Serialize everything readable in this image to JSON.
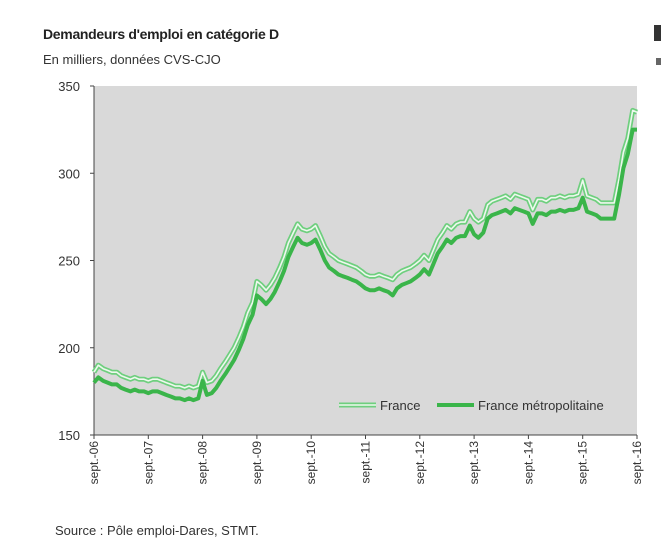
{
  "header": {
    "title": "Demandeurs d'emploi en catégorie D",
    "subtitle": "En milliers, données CVS-CJO"
  },
  "footer": {
    "source": "Source : Pôle emploi-Dares, STMT."
  },
  "colors": {
    "plot_bg": "#d9d9d9",
    "france": "#6ecf7e",
    "metro": "#3ab54a"
  },
  "chart_data": {
    "type": "line",
    "title": "Demandeurs d'emploi en catégorie D",
    "subtitle": "En milliers, données CVS-CJO",
    "xlabel": "",
    "ylabel": "",
    "ylim": [
      150,
      350
    ],
    "yticks": [
      150,
      200,
      250,
      300,
      350
    ],
    "x_tick_labels": [
      "sept.-06",
      "sept.-07",
      "sept.-08",
      "sept.-09",
      "sept.-10",
      "sept.-11",
      "sept.-12",
      "sept.-13",
      "sept.-14",
      "sept.-15",
      "sept.-16"
    ],
    "x_range_years": [
      0,
      10
    ],
    "legend_position": "bottom-right",
    "series": [
      {
        "name": "France",
        "style": "double-line",
        "points": [
          [
            0.0,
            186
          ],
          [
            0.08,
            190
          ],
          [
            0.17,
            188
          ],
          [
            0.25,
            187
          ],
          [
            0.33,
            186
          ],
          [
            0.42,
            186
          ],
          [
            0.5,
            184
          ],
          [
            0.58,
            183
          ],
          [
            0.67,
            182
          ],
          [
            0.75,
            183
          ],
          [
            0.83,
            182
          ],
          [
            0.92,
            182
          ],
          [
            1.0,
            181
          ],
          [
            1.08,
            182
          ],
          [
            1.17,
            182
          ],
          [
            1.25,
            181
          ],
          [
            1.33,
            180
          ],
          [
            1.42,
            179
          ],
          [
            1.5,
            178
          ],
          [
            1.58,
            178
          ],
          [
            1.67,
            177
          ],
          [
            1.75,
            178
          ],
          [
            1.83,
            177
          ],
          [
            1.92,
            178
          ],
          [
            2.0,
            186
          ],
          [
            2.08,
            180
          ],
          [
            2.17,
            181
          ],
          [
            2.25,
            184
          ],
          [
            2.33,
            188
          ],
          [
            2.42,
            192
          ],
          [
            2.5,
            196
          ],
          [
            2.58,
            200
          ],
          [
            2.67,
            206
          ],
          [
            2.75,
            212
          ],
          [
            2.83,
            220
          ],
          [
            2.92,
            226
          ],
          [
            3.0,
            238
          ],
          [
            3.08,
            236
          ],
          [
            3.17,
            233
          ],
          [
            3.25,
            236
          ],
          [
            3.33,
            240
          ],
          [
            3.42,
            246
          ],
          [
            3.5,
            252
          ],
          [
            3.58,
            260
          ],
          [
            3.67,
            266
          ],
          [
            3.75,
            271
          ],
          [
            3.83,
            268
          ],
          [
            3.92,
            267
          ],
          [
            4.0,
            268
          ],
          [
            4.08,
            270
          ],
          [
            4.17,
            264
          ],
          [
            4.25,
            258
          ],
          [
            4.33,
            254
          ],
          [
            4.42,
            252
          ],
          [
            4.5,
            250
          ],
          [
            4.58,
            249
          ],
          [
            4.67,
            248
          ],
          [
            4.75,
            247
          ],
          [
            4.83,
            246
          ],
          [
            4.92,
            244
          ],
          [
            5.0,
            242
          ],
          [
            5.08,
            241
          ],
          [
            5.17,
            241
          ],
          [
            5.25,
            242
          ],
          [
            5.33,
            241
          ],
          [
            5.42,
            240
          ],
          [
            5.5,
            239
          ],
          [
            5.58,
            242
          ],
          [
            5.67,
            244
          ],
          [
            5.75,
            245
          ],
          [
            5.83,
            246
          ],
          [
            5.92,
            248
          ],
          [
            6.0,
            250
          ],
          [
            6.08,
            253
          ],
          [
            6.17,
            250
          ],
          [
            6.25,
            256
          ],
          [
            6.33,
            262
          ],
          [
            6.42,
            266
          ],
          [
            6.5,
            270
          ],
          [
            6.58,
            268
          ],
          [
            6.67,
            271
          ],
          [
            6.75,
            272
          ],
          [
            6.83,
            272
          ],
          [
            6.92,
            278
          ],
          [
            7.0,
            274
          ],
          [
            7.08,
            272
          ],
          [
            7.17,
            274
          ],
          [
            7.25,
            282
          ],
          [
            7.33,
            284
          ],
          [
            7.42,
            285
          ],
          [
            7.5,
            286
          ],
          [
            7.58,
            287
          ],
          [
            7.67,
            285
          ],
          [
            7.75,
            288
          ],
          [
            7.83,
            287
          ],
          [
            7.92,
            286
          ],
          [
            8.0,
            285
          ],
          [
            8.08,
            279
          ],
          [
            8.17,
            285
          ],
          [
            8.25,
            285
          ],
          [
            8.33,
            284
          ],
          [
            8.42,
            286
          ],
          [
            8.5,
            286
          ],
          [
            8.58,
            287
          ],
          [
            8.67,
            286
          ],
          [
            8.75,
            287
          ],
          [
            8.83,
            287
          ],
          [
            8.92,
            288
          ],
          [
            9.0,
            296
          ],
          [
            9.08,
            287
          ],
          [
            9.17,
            286
          ],
          [
            9.25,
            285
          ],
          [
            9.33,
            283
          ],
          [
            9.42,
            283
          ],
          [
            9.5,
            283
          ],
          [
            9.58,
            283
          ],
          [
            9.67,
            297
          ],
          [
            9.75,
            312
          ],
          [
            9.83,
            320
          ],
          [
            9.92,
            336
          ],
          [
            10.0,
            335
          ]
        ]
      },
      {
        "name": "France métropolitaine",
        "style": "thick-line",
        "points": [
          [
            0.0,
            180
          ],
          [
            0.08,
            183
          ],
          [
            0.17,
            181
          ],
          [
            0.25,
            180
          ],
          [
            0.33,
            179
          ],
          [
            0.42,
            179
          ],
          [
            0.5,
            177
          ],
          [
            0.58,
            176
          ],
          [
            0.67,
            175
          ],
          [
            0.75,
            176
          ],
          [
            0.83,
            175
          ],
          [
            0.92,
            175
          ],
          [
            1.0,
            174
          ],
          [
            1.08,
            175
          ],
          [
            1.17,
            175
          ],
          [
            1.25,
            174
          ],
          [
            1.33,
            173
          ],
          [
            1.42,
            172
          ],
          [
            1.5,
            171
          ],
          [
            1.58,
            171
          ],
          [
            1.67,
            170
          ],
          [
            1.75,
            171
          ],
          [
            1.83,
            170
          ],
          [
            1.92,
            171
          ],
          [
            2.0,
            181
          ],
          [
            2.08,
            173
          ],
          [
            2.17,
            174
          ],
          [
            2.25,
            177
          ],
          [
            2.33,
            181
          ],
          [
            2.42,
            185
          ],
          [
            2.5,
            189
          ],
          [
            2.58,
            193
          ],
          [
            2.67,
            199
          ],
          [
            2.75,
            205
          ],
          [
            2.83,
            213
          ],
          [
            2.92,
            219
          ],
          [
            3.0,
            230
          ],
          [
            3.08,
            228
          ],
          [
            3.17,
            225
          ],
          [
            3.25,
            228
          ],
          [
            3.33,
            232
          ],
          [
            3.42,
            238
          ],
          [
            3.5,
            244
          ],
          [
            3.58,
            252
          ],
          [
            3.67,
            258
          ],
          [
            3.75,
            263
          ],
          [
            3.83,
            260
          ],
          [
            3.92,
            259
          ],
          [
            4.0,
            260
          ],
          [
            4.08,
            262
          ],
          [
            4.17,
            256
          ],
          [
            4.25,
            250
          ],
          [
            4.33,
            246
          ],
          [
            4.42,
            244
          ],
          [
            4.5,
            242
          ],
          [
            4.58,
            241
          ],
          [
            4.67,
            240
          ],
          [
            4.75,
            239
          ],
          [
            4.83,
            238
          ],
          [
            4.92,
            236
          ],
          [
            5.0,
            234
          ],
          [
            5.08,
            233
          ],
          [
            5.17,
            233
          ],
          [
            5.25,
            234
          ],
          [
            5.33,
            233
          ],
          [
            5.42,
            232
          ],
          [
            5.5,
            230
          ],
          [
            5.58,
            234
          ],
          [
            5.67,
            236
          ],
          [
            5.75,
            237
          ],
          [
            5.83,
            238
          ],
          [
            5.92,
            240
          ],
          [
            6.0,
            242
          ],
          [
            6.08,
            245
          ],
          [
            6.17,
            242
          ],
          [
            6.25,
            248
          ],
          [
            6.33,
            254
          ],
          [
            6.42,
            258
          ],
          [
            6.5,
            262
          ],
          [
            6.58,
            260
          ],
          [
            6.67,
            263
          ],
          [
            6.75,
            264
          ],
          [
            6.83,
            264
          ],
          [
            6.92,
            270
          ],
          [
            7.0,
            265
          ],
          [
            7.08,
            263
          ],
          [
            7.17,
            266
          ],
          [
            7.25,
            274
          ],
          [
            7.33,
            276
          ],
          [
            7.42,
            277
          ],
          [
            7.5,
            278
          ],
          [
            7.58,
            279
          ],
          [
            7.67,
            277
          ],
          [
            7.75,
            280
          ],
          [
            7.83,
            279
          ],
          [
            7.92,
            278
          ],
          [
            8.0,
            277
          ],
          [
            8.08,
            271
          ],
          [
            8.17,
            277
          ],
          [
            8.25,
            277
          ],
          [
            8.33,
            276
          ],
          [
            8.42,
            278
          ],
          [
            8.5,
            278
          ],
          [
            8.58,
            279
          ],
          [
            8.67,
            278
          ],
          [
            8.75,
            279
          ],
          [
            8.83,
            279
          ],
          [
            8.92,
            280
          ],
          [
            9.0,
            286
          ],
          [
            9.08,
            278
          ],
          [
            9.17,
            277
          ],
          [
            9.25,
            276
          ],
          [
            9.33,
            274
          ],
          [
            9.42,
            274
          ],
          [
            9.5,
            274
          ],
          [
            9.58,
            274
          ],
          [
            9.67,
            288
          ],
          [
            9.75,
            303
          ],
          [
            9.83,
            311
          ],
          [
            9.92,
            325
          ],
          [
            10.0,
            325
          ]
        ]
      }
    ]
  }
}
